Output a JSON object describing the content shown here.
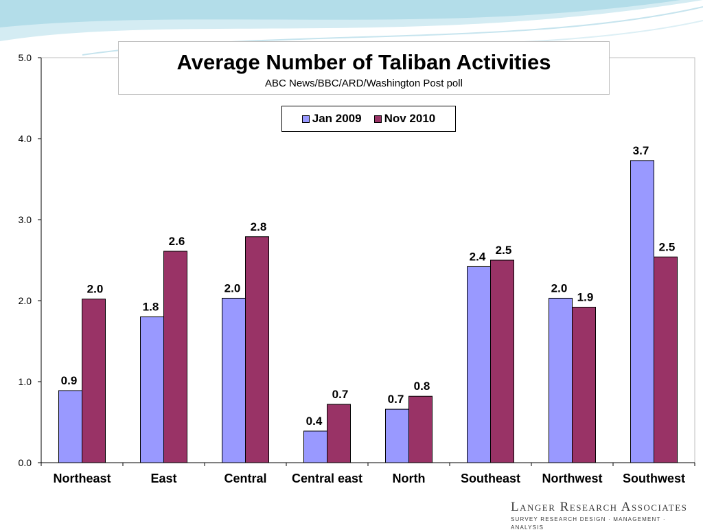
{
  "colors": {
    "jan_2009": "#9999ff",
    "nov_2010": "#993366",
    "swoosh_light": "#cfe9f1",
    "swoosh_mid": "#9fd3e3"
  },
  "chart_data": {
    "type": "bar",
    "title": "Average Number of Taliban Activities",
    "subtitle": "ABC News/BBC/ARD/Washington Post poll",
    "categories": [
      "Northeast",
      "East",
      "Central",
      "Central east",
      "North",
      "Southeast",
      "Northwest",
      "Southwest"
    ],
    "series": [
      {
        "name": "Jan 2009",
        "values": [
          0.89,
          1.8,
          2.03,
          0.39,
          0.66,
          2.42,
          2.03,
          3.73
        ],
        "labels": [
          "0.9",
          "1.8",
          "2.0",
          "0.4",
          "0.7",
          "2.4",
          "2.0",
          "3.7"
        ]
      },
      {
        "name": "Nov 2010",
        "values": [
          2.02,
          2.61,
          2.79,
          0.72,
          0.82,
          2.5,
          1.92,
          2.54
        ],
        "labels": [
          "2.0",
          "2.6",
          "2.8",
          "0.7",
          "0.8",
          "2.5",
          "1.9",
          "2.5"
        ]
      }
    ],
    "ylim": [
      0,
      5
    ],
    "yticks": [
      "0.0",
      "1.0",
      "2.0",
      "3.0",
      "4.0",
      "5.0"
    ],
    "xlabel": "",
    "ylabel": "",
    "legend_position": "top-center",
    "grid": false
  },
  "branding": {
    "logo_main": "Langer Research Associates",
    "logo_sub": "SURVEY RESEARCH DESIGN · MANAGEMENT · ANALYSIS"
  }
}
